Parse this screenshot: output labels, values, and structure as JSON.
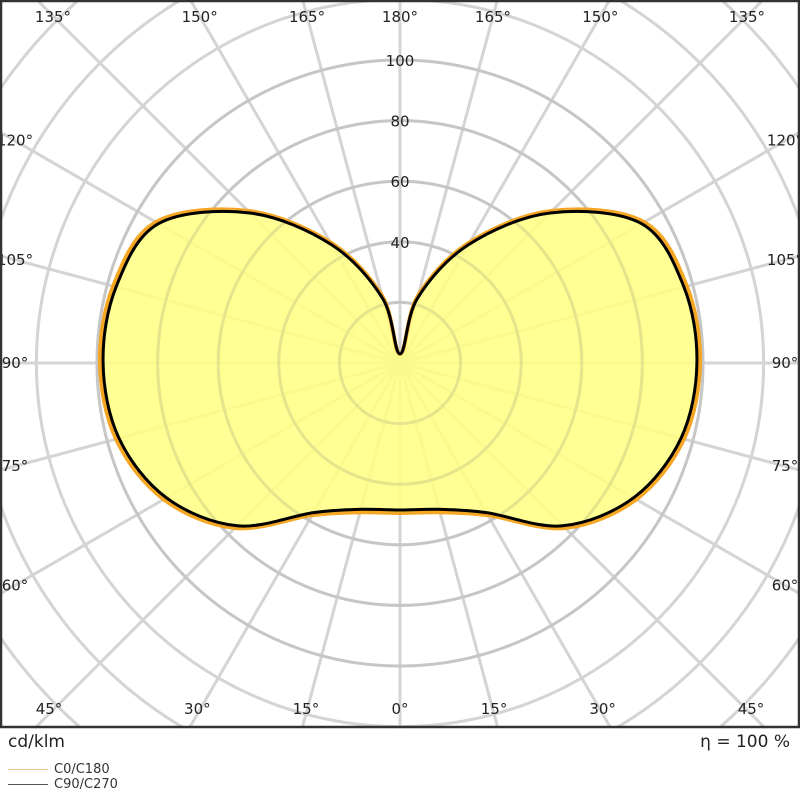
{
  "chart_data": {
    "type": "polar",
    "unit_label": "cd/klm",
    "efficiency_label": "η = 100 %",
    "radial_ticks": [
      20,
      40,
      60,
      80,
      100,
      120,
      140,
      160,
      180
    ],
    "radial_tick_labels": [
      "40",
      "60",
      "80",
      "100"
    ],
    "radial_labeled_values": [
      40,
      60,
      80,
      100
    ],
    "angle_step_deg": 15,
    "angle_tick_labels": [
      {
        "angle": 0,
        "label": "0°"
      },
      {
        "angle": 15,
        "label": "15°"
      },
      {
        "angle": 30,
        "label": "30°"
      },
      {
        "angle": 45,
        "label": "45°"
      },
      {
        "angle": 60,
        "label": "60°"
      },
      {
        "angle": 75,
        "label": "75°"
      },
      {
        "angle": 90,
        "label": "90°"
      },
      {
        "angle": 105,
        "label": "105°"
      },
      {
        "angle": 120,
        "label": "120°"
      },
      {
        "angle": 135,
        "label": "135°"
      },
      {
        "angle": 150,
        "label": "150°"
      },
      {
        "angle": 165,
        "label": "165°"
      },
      {
        "angle": 180,
        "label": "180°"
      }
    ],
    "angles_deg": [
      0,
      15,
      30,
      45,
      60,
      75,
      90,
      105,
      120,
      135,
      150,
      165,
      180
    ],
    "series": [
      {
        "name": "C0/C180",
        "color": "#f5a623",
        "values": [
          49.5,
          51,
          58,
          77,
          90,
          97,
          99,
          98,
          93,
          71,
          46,
          23,
          3
        ]
      },
      {
        "name": "C90/C270",
        "color": "#000000",
        "values": [
          48.5,
          50,
          57,
          76,
          89,
          96,
          98,
          97,
          92,
          70,
          45,
          22,
          3
        ]
      }
    ],
    "fill_color": "#ffff80",
    "grid": true
  }
}
